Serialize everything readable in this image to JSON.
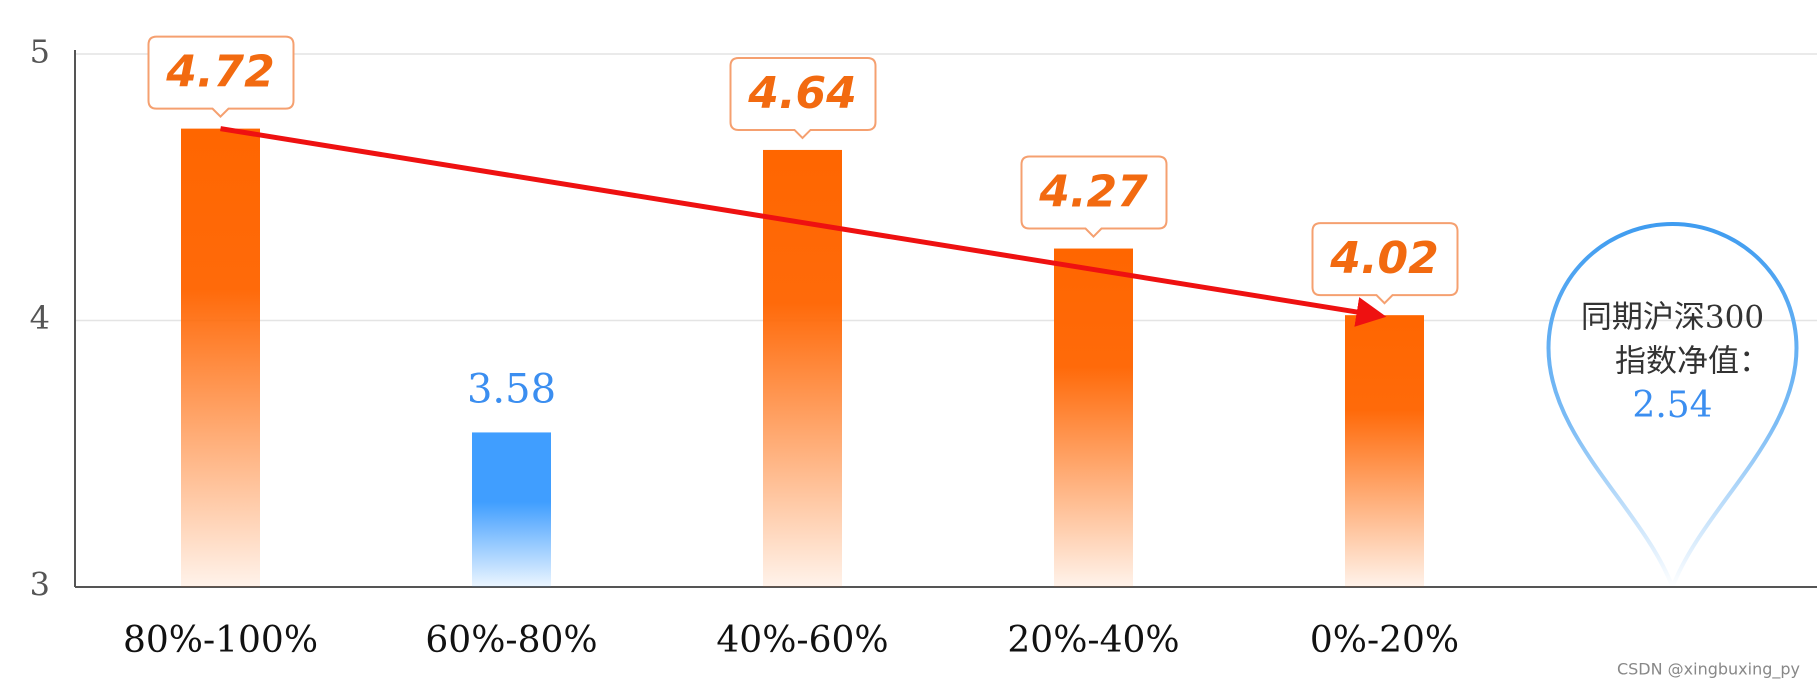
{
  "chart_data": {
    "type": "bar",
    "categories": [
      "80%-100%",
      "60%-80%",
      "40%-60%",
      "20%-40%",
      "0%-20%"
    ],
    "values": [
      4.72,
      3.58,
      4.64,
      4.27,
      4.02
    ],
    "colors": [
      "#ff6600",
      "#409eff",
      "#ff6600",
      "#ff6600",
      "#ff6600"
    ],
    "ylim": [
      3,
      5
    ],
    "yticks": [
      3,
      4,
      5
    ],
    "grid": true,
    "annotation": {
      "lines": [
        "同期沪深300",
        "指数净值："
      ],
      "value": 2.54
    },
    "watermark": "CSDN @xingbuxing_py"
  }
}
